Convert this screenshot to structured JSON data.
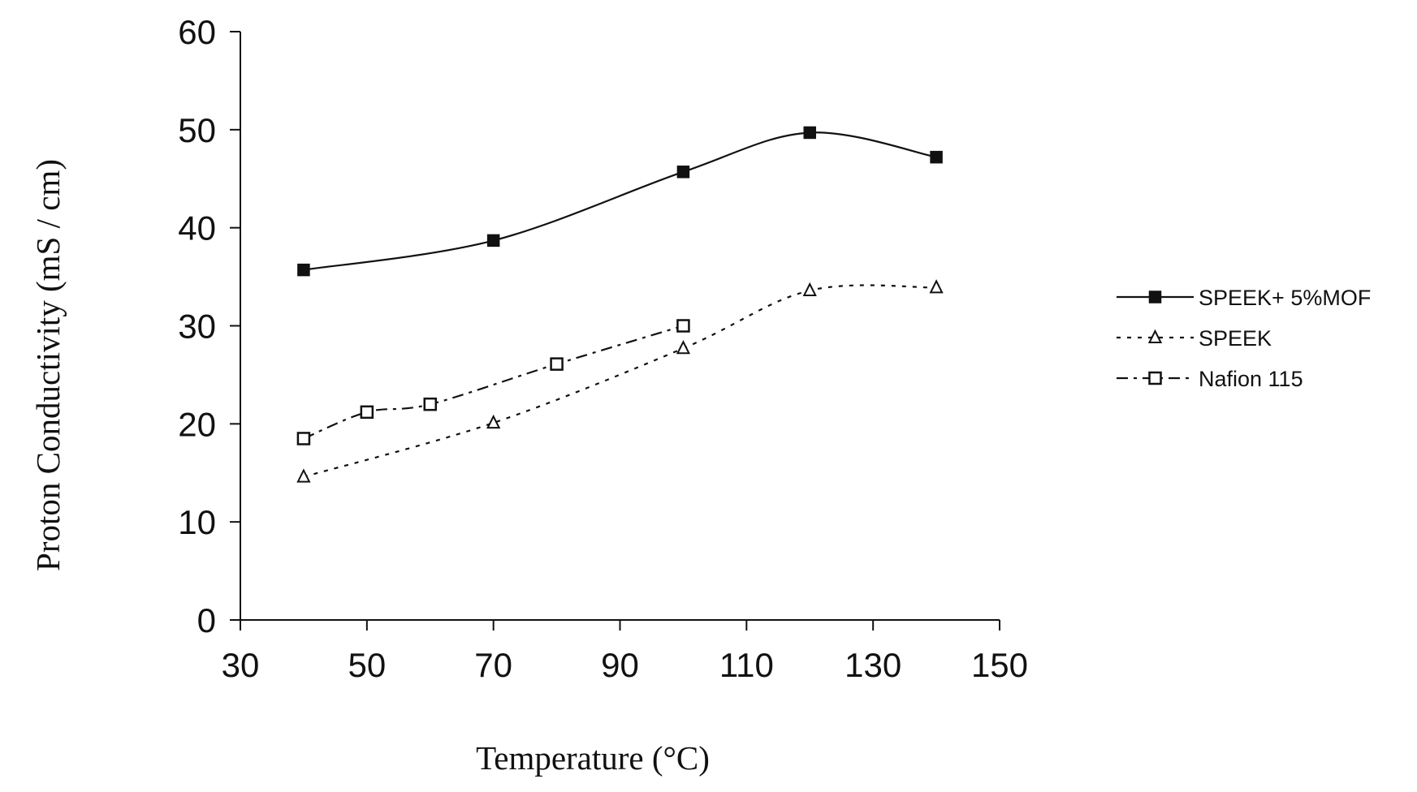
{
  "chart_data": {
    "type": "line",
    "title": "",
    "xlabel": "Temperature (°C)",
    "ylabel": "Proton Conductivity (mS / cm)",
    "xlim": [
      30,
      150
    ],
    "ylim": [
      0,
      60
    ],
    "x_ticks": [
      30,
      50,
      70,
      90,
      110,
      130,
      150
    ],
    "y_ticks": [
      0,
      10,
      20,
      30,
      40,
      50,
      60
    ],
    "x_tick_labels": [
      "30",
      "50",
      "70",
      "90",
      "110",
      "130",
      "150"
    ],
    "y_tick_labels": [
      "0",
      "10",
      "20",
      "30",
      "40",
      "50",
      "60"
    ],
    "grid": false,
    "legend_position": "right",
    "series": [
      {
        "name": "SPEEK+ 5%MOF",
        "line_style": "solid",
        "marker": "filled-square",
        "x": [
          40,
          70,
          100,
          120,
          140
        ],
        "y": [
          35.7,
          38.7,
          45.7,
          49.7,
          47.2
        ]
      },
      {
        "name": "SPEEK",
        "line_style": "dotted",
        "marker": "filled-triangle",
        "x": [
          40,
          70,
          100,
          120,
          140
        ],
        "y": [
          14.6,
          20.1,
          27.7,
          33.6,
          33.9
        ]
      },
      {
        "name": "Nafion 115",
        "line_style": "dash-dot",
        "marker": "open-square",
        "x": [
          40,
          50,
          60,
          80,
          100
        ],
        "y": [
          18.5,
          21.2,
          22.0,
          26.1,
          30.0
        ]
      }
    ],
    "colors": {
      "line": "#111111",
      "background": "#ffffff"
    }
  }
}
